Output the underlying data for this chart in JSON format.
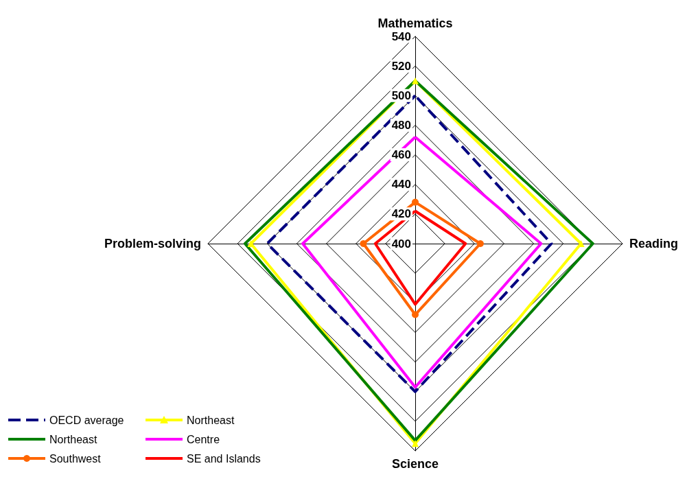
{
  "chart_data": {
    "type": "radar",
    "categories": [
      "Mathematics",
      "Reading",
      "Science",
      "Problem-solving"
    ],
    "ylim": [
      400,
      540
    ],
    "yticks": [
      400,
      420,
      440,
      460,
      480,
      500,
      520,
      540
    ],
    "legend": "bottom left",
    "grid": true,
    "series": [
      {
        "name": "OECD average",
        "color": "#000080",
        "line_style": "dashed",
        "marker": "none",
        "values": [
          500,
          492,
          500,
          500
        ]
      },
      {
        "name": "Northeast",
        "color": "#ffff00",
        "line_style": "solid",
        "marker": "triangle",
        "values": [
          510,
          512,
          535,
          511
        ]
      },
      {
        "name": "Northeast",
        "color": "#008000",
        "line_style": "solid",
        "marker": "none",
        "values": [
          510,
          520,
          533,
          515
        ]
      },
      {
        "name": "Centre",
        "color": "#ff00ff",
        "line_style": "solid",
        "marker": "none",
        "values": [
          472,
          485,
          497,
          476
        ]
      },
      {
        "name": "Southwest",
        "color": "#ff6600",
        "line_style": "solid",
        "marker": "circle",
        "values": [
          428,
          444,
          448,
          435
        ]
      },
      {
        "name": "SE and Islands",
        "color": "#ff0000",
        "line_style": "solid",
        "marker": "none",
        "values": [
          422,
          434,
          441,
          427
        ]
      }
    ]
  }
}
